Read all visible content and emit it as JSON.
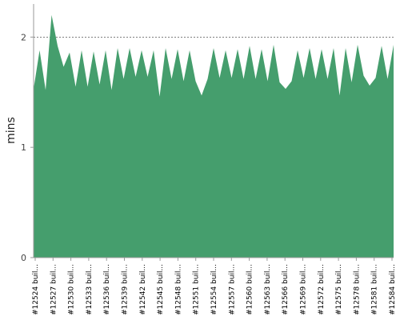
{
  "chart_data": {
    "type": "area",
    "ylabel": "mins",
    "xlabel": "",
    "title": "",
    "ylim": [
      0,
      2.3
    ],
    "yticks": [
      0,
      1,
      2
    ],
    "grid": "horizontal dashed",
    "legend": "none",
    "colors": {
      "area_fill": "#459E6D",
      "axis": "#999999",
      "grid": "#555555",
      "background": "#ffffff"
    },
    "xtick_labels": [
      "#12524 buil...",
      "#12527 buil...",
      "#12530 buil...",
      "#12533 buil...",
      "#12536 buil...",
      "#12539 buil...",
      "#12542 buil...",
      "#12545 buil...",
      "#12548 buil...",
      "#12551 buil...",
      "#12554 buil...",
      "#12557 buil...",
      "#12560 buil...",
      "#12563 buil...",
      "#12566 buil...",
      "#12569 buil...",
      "#12572 buil...",
      "#12575 buil...",
      "#12578 buil...",
      "#12581 buil...",
      "#12584 buil..."
    ],
    "series": [
      {
        "values": [
          1.53,
          1.88,
          1.52,
          2.2,
          1.92,
          1.73,
          1.86,
          1.55,
          1.88,
          1.55,
          1.87,
          1.57,
          1.88,
          1.52,
          1.9,
          1.62,
          1.9,
          1.64,
          1.88,
          1.64,
          1.88,
          1.46,
          1.9,
          1.62,
          1.89,
          1.6,
          1.88,
          1.6,
          1.47,
          1.62,
          1.9,
          1.63,
          1.88,
          1.63,
          1.89,
          1.62,
          1.92,
          1.62,
          1.89,
          1.6,
          1.93,
          1.59,
          1.53,
          1.6,
          1.88,
          1.63,
          1.9,
          1.62,
          1.89,
          1.62,
          1.9,
          1.47,
          1.9,
          1.59,
          1.93,
          1.65,
          1.56,
          1.63,
          1.92,
          1.62,
          1.93
        ]
      }
    ]
  }
}
